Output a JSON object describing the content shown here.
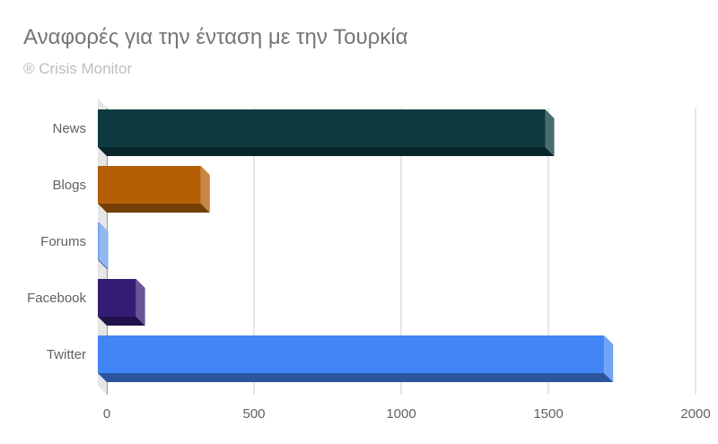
{
  "chart_data": {
    "type": "bar",
    "orientation": "horizontal",
    "title": "Αναφορές για την ένταση με την Τουρκία",
    "subtitle": "® Crisis Monitor",
    "categories": [
      "News",
      "Blogs",
      "Forums",
      "Facebook",
      "Twitter"
    ],
    "values": [
      1520,
      350,
      5,
      130,
      1720
    ],
    "colors": [
      "#0d3b40",
      "#b45f06",
      "#6d9eeb",
      "#351c75",
      "#4285f4"
    ],
    "x_ticks": [
      "0",
      "500",
      "1000",
      "1500",
      "2000"
    ],
    "xlim": [
      0,
      2000
    ],
    "grid": true,
    "legend": "none",
    "style": "3d"
  }
}
